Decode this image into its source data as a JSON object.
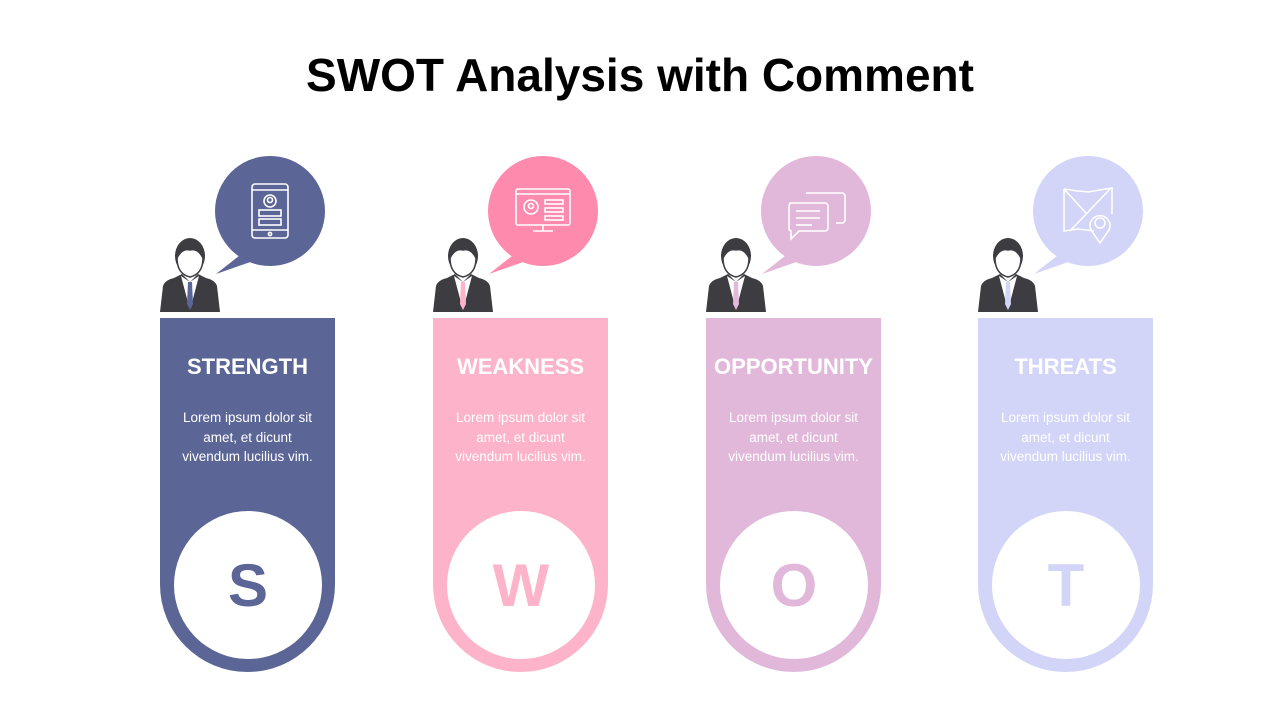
{
  "title": "SWOT Analysis with Comment",
  "columns": [
    {
      "heading": "STRENGTH",
      "text": "Lorem ipsum dolor sit amet, et dicunt vivendum lucilius vim.",
      "letter": "S",
      "color": "#5b6696",
      "bubble_color": "#5b6696",
      "icon": "tablet-profile-icon"
    },
    {
      "heading": "WEAKNESS",
      "text": "Lorem ipsum dolor sit amet, et dicunt vivendum lucilius vim.",
      "letter": "W",
      "color": "#fdb3ca",
      "bubble_color": "#fe8aae",
      "icon": "monitor-profile-icon"
    },
    {
      "heading": "OPPORTUNITY",
      "text": "Lorem ipsum dolor sit amet, et dicunt vivendum lucilius vim.",
      "letter": "O",
      "color": "#e1b8da",
      "bubble_color": "#e1b8da",
      "icon": "chat-bubbles-icon"
    },
    {
      "heading": "THREATS",
      "text": "Lorem ipsum dolor sit amet, et dicunt vivendum lucilius vim.",
      "letter": "T",
      "color": "#d2d4f8",
      "bubble_color": "#d2d4f8",
      "icon": "map-pin-icon"
    }
  ]
}
